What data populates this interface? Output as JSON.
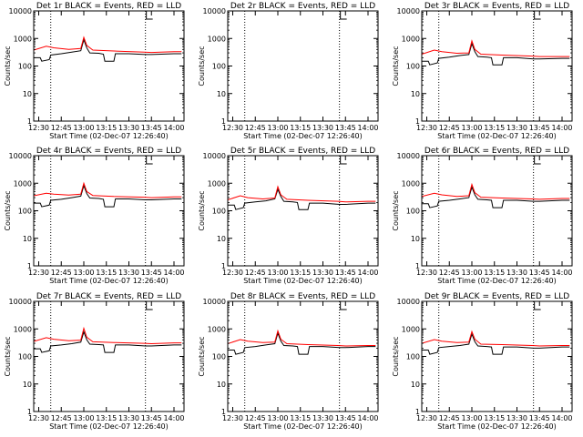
{
  "figure": {
    "background": "#ffffff",
    "events_color": "#000000",
    "lld_color": "#ff0000",
    "marker_color": "#000000"
  },
  "chart_data": [
    {
      "type": "line",
      "title": "Det 1r BLACK = Events, RED = LLD",
      "xlabel": "Start Time (02-Dec-07 12:26:40)",
      "ylabel": "Counts/sec",
      "y_scale": "log",
      "xlim": [
        "12:26:40",
        "14:06:40"
      ],
      "ylim": [
        1,
        10000
      ],
      "x_tick_labels": [
        "12:30",
        "12:45",
        "13:00",
        "13:15",
        "13:30",
        "13:45",
        "14:00"
      ],
      "y_tick_labels": [
        "1",
        "10",
        "100",
        "1000",
        "10000"
      ],
      "vertical_markers": [
        "12:38",
        "13:41"
      ],
      "series": [
        {
          "name": "Events",
          "color": "#000000",
          "x": [
            "12:26:40",
            "12:31",
            "12:32",
            "12:37",
            "12:38",
            "12:45",
            "12:52",
            "12:58",
            "13:00",
            "13:02",
            "13:04",
            "13:10",
            "13:13",
            "13:14",
            "13:20",
            "13:21",
            "13:30",
            "13:41",
            "13:45",
            "14:00",
            "14:05"
          ],
          "y": [
            200,
            200,
            150,
            170,
            250,
            280,
            320,
            360,
            900,
            450,
            300,
            290,
            270,
            150,
            150,
            280,
            280,
            260,
            260,
            280,
            280
          ]
        },
        {
          "name": "LLD",
          "color": "#ff0000",
          "x": [
            "12:26:40",
            "12:35",
            "12:40",
            "12:50",
            "12:58",
            "13:00",
            "13:02",
            "13:06",
            "13:20",
            "13:40",
            "13:45",
            "14:00",
            "14:05"
          ],
          "y": [
            380,
            520,
            460,
            400,
            430,
            1100,
            560,
            380,
            350,
            320,
            310,
            330,
            330
          ]
        }
      ]
    },
    {
      "type": "line",
      "title": "Det 2r BLACK = Events, RED = LLD",
      "xlabel": "Start Time (02-Dec-07 12:26:40)",
      "ylabel": "Counts/sec",
      "y_scale": "log",
      "xlim": [
        "12:26:40",
        "14:06:40"
      ],
      "ylim": [
        1,
        10000
      ],
      "x_tick_labels": [
        "12:30",
        "12:45",
        "13:00",
        "13:15",
        "13:30",
        "13:45",
        "14:00"
      ],
      "y_tick_labels": [
        "1",
        "10",
        "100",
        "1000",
        "10000"
      ],
      "vertical_markers": [
        "12:38",
        "13:41"
      ],
      "series": []
    },
    {
      "type": "line",
      "title": "Det 3r BLACK = Events, RED = LLD",
      "xlabel": "Start Time (02-Dec-07 12:26:40)",
      "ylabel": "Counts/sec",
      "y_scale": "log",
      "xlim": [
        "12:26:40",
        "14:06:40"
      ],
      "ylim": [
        1,
        10000
      ],
      "x_tick_labels": [
        "12:30",
        "12:45",
        "13:00",
        "13:15",
        "13:30",
        "13:45",
        "14:00"
      ],
      "y_tick_labels": [
        "1",
        "10",
        "100",
        "1000",
        "10000"
      ],
      "vertical_markers": [
        "12:38",
        "13:41"
      ],
      "series": [
        {
          "name": "Events",
          "color": "#000000",
          "x": [
            "12:26:40",
            "12:31",
            "12:32",
            "12:37",
            "12:38",
            "12:45",
            "12:52",
            "12:58",
            "13:00",
            "13:02",
            "13:04",
            "13:10",
            "13:13",
            "13:14",
            "13:20",
            "13:21",
            "13:30",
            "13:41",
            "13:45",
            "14:00",
            "14:05"
          ],
          "y": [
            150,
            150,
            110,
            130,
            190,
            210,
            240,
            260,
            650,
            330,
            220,
            210,
            200,
            110,
            110,
            200,
            200,
            180,
            180,
            190,
            190
          ]
        },
        {
          "name": "LLD",
          "color": "#ff0000",
          "x": [
            "12:26:40",
            "12:35",
            "12:40",
            "12:50",
            "12:58",
            "13:00",
            "13:02",
            "13:06",
            "13:20",
            "13:40",
            "13:45",
            "14:00",
            "14:05"
          ],
          "y": [
            270,
            380,
            330,
            290,
            300,
            820,
            400,
            270,
            250,
            230,
            220,
            220,
            220
          ]
        }
      ]
    },
    {
      "type": "line",
      "title": "Det 4r BLACK = Events, RED = LLD",
      "xlabel": "Start Time (02-Dec-07 12:26:40)",
      "ylabel": "Counts/sec",
      "y_scale": "log",
      "xlim": [
        "12:26:40",
        "14:06:40"
      ],
      "ylim": [
        1,
        10000
      ],
      "x_tick_labels": [
        "12:30",
        "12:45",
        "13:00",
        "13:15",
        "13:30",
        "13:45",
        "14:00"
      ],
      "y_tick_labels": [
        "1",
        "10",
        "100",
        "1000",
        "10000"
      ],
      "vertical_markers": [
        "12:38",
        "13:41"
      ],
      "series": [
        {
          "name": "Events",
          "color": "#000000",
          "x": [
            "12:26:40",
            "12:31",
            "12:32",
            "12:37",
            "12:38",
            "12:45",
            "12:52",
            "12:58",
            "13:00",
            "13:02",
            "13:04",
            "13:10",
            "13:13",
            "13:14",
            "13:20",
            "13:21",
            "13:30",
            "13:41",
            "13:45",
            "14:00",
            "14:05"
          ],
          "y": [
            190,
            190,
            140,
            160,
            240,
            260,
            300,
            340,
            820,
            420,
            290,
            280,
            260,
            140,
            140,
            270,
            270,
            250,
            250,
            270,
            270
          ]
        },
        {
          "name": "LLD",
          "color": "#ff0000",
          "x": [
            "12:26:40",
            "12:35",
            "12:40",
            "12:50",
            "12:58",
            "13:00",
            "13:02",
            "13:06",
            "13:20",
            "13:40",
            "13:45",
            "14:00",
            "14:05"
          ],
          "y": [
            350,
            430,
            400,
            370,
            400,
            1000,
            500,
            360,
            330,
            310,
            300,
            320,
            320
          ]
        }
      ]
    },
    {
      "type": "line",
      "title": "Det 5r BLACK = Events, RED = LLD",
      "xlabel": "Start Time (02-Dec-07 12:26:40)",
      "ylabel": "Counts/sec",
      "y_scale": "log",
      "xlim": [
        "12:26:40",
        "14:06:40"
      ],
      "ylim": [
        1,
        10000
      ],
      "x_tick_labels": [
        "12:30",
        "12:45",
        "13:00",
        "13:15",
        "13:30",
        "13:45",
        "14:00"
      ],
      "y_tick_labels": [
        "1",
        "10",
        "100",
        "1000",
        "10000"
      ],
      "vertical_markers": [
        "12:38",
        "13:41"
      ],
      "series": [
        {
          "name": "Events",
          "color": "#000000",
          "x": [
            "12:26:40",
            "12:31",
            "12:32",
            "12:37",
            "12:38",
            "12:45",
            "12:52",
            "12:58",
            "13:00",
            "13:02",
            "13:04",
            "13:10",
            "13:13",
            "13:14",
            "13:20",
            "13:21",
            "13:30",
            "13:41",
            "13:45",
            "14:00",
            "14:05"
          ],
          "y": [
            160,
            160,
            110,
            130,
            190,
            210,
            230,
            270,
            600,
            330,
            220,
            210,
            200,
            110,
            110,
            190,
            190,
            170,
            170,
            190,
            190
          ]
        },
        {
          "name": "LLD",
          "color": "#ff0000",
          "x": [
            "12:26:40",
            "12:35",
            "12:40",
            "12:50",
            "12:58",
            "13:00",
            "13:02",
            "13:06",
            "13:20",
            "13:40",
            "13:45",
            "14:00",
            "14:05"
          ],
          "y": [
            250,
            350,
            300,
            270,
            290,
            750,
            380,
            260,
            240,
            220,
            210,
            220,
            220
          ]
        }
      ]
    },
    {
      "type": "line",
      "title": "Det 6r BLACK = Events, RED = LLD",
      "xlabel": "Start Time (02-Dec-07 12:26:40)",
      "ylabel": "Counts/sec",
      "y_scale": "log",
      "xlim": [
        "12:26:40",
        "14:06:40"
      ],
      "ylim": [
        1,
        10000
      ],
      "x_tick_labels": [
        "12:30",
        "12:45",
        "13:00",
        "13:15",
        "13:30",
        "13:45",
        "14:00"
      ],
      "y_tick_labels": [
        "1",
        "10",
        "100",
        "1000",
        "10000"
      ],
      "vertical_markers": [
        "12:38",
        "13:41"
      ],
      "series": [
        {
          "name": "Events",
          "color": "#000000",
          "x": [
            "12:26:40",
            "12:31",
            "12:32",
            "12:37",
            "12:38",
            "12:45",
            "12:52",
            "12:58",
            "13:00",
            "13:02",
            "13:04",
            "13:10",
            "13:13",
            "13:14",
            "13:20",
            "13:21",
            "13:30",
            "13:41",
            "13:45",
            "14:00",
            "14:05"
          ],
          "y": [
            180,
            180,
            130,
            150,
            220,
            240,
            270,
            300,
            720,
            380,
            260,
            250,
            240,
            130,
            130,
            240,
            240,
            220,
            220,
            240,
            240
          ]
        },
        {
          "name": "LLD",
          "color": "#ff0000",
          "x": [
            "12:26:40",
            "12:35",
            "12:40",
            "12:50",
            "12:58",
            "13:00",
            "13:02",
            "13:06",
            "13:20",
            "13:40",
            "13:45",
            "14:00",
            "14:05"
          ],
          "y": [
            330,
            430,
            380,
            330,
            350,
            900,
            450,
            310,
            290,
            270,
            260,
            280,
            280
          ]
        }
      ]
    },
    {
      "type": "line",
      "title": "Det 7r BLACK = Events, RED = LLD",
      "xlabel": "Start Time (02-Dec-07 12:26:40)",
      "ylabel": "Counts/sec",
      "y_scale": "log",
      "xlim": [
        "12:26:40",
        "14:06:40"
      ],
      "ylim": [
        1,
        10000
      ],
      "x_tick_labels": [
        "12:30",
        "12:45",
        "13:00",
        "13:15",
        "13:30",
        "13:45",
        "14:00"
      ],
      "y_tick_labels": [
        "1",
        "10",
        "100",
        "1000",
        "10000"
      ],
      "vertical_markers": [
        "12:38",
        "13:41"
      ],
      "series": [
        {
          "name": "Events",
          "color": "#000000",
          "x": [
            "12:26:40",
            "12:31",
            "12:32",
            "12:37",
            "12:38",
            "12:45",
            "12:52",
            "12:58",
            "13:00",
            "13:02",
            "13:04",
            "13:10",
            "13:13",
            "13:14",
            "13:20",
            "13:21",
            "13:30",
            "13:41",
            "13:45",
            "14:00",
            "14:05"
          ],
          "y": [
            190,
            190,
            140,
            160,
            240,
            260,
            290,
            330,
            780,
            400,
            280,
            270,
            260,
            140,
            140,
            260,
            260,
            240,
            240,
            260,
            260
          ]
        },
        {
          "name": "LLD",
          "color": "#ff0000",
          "x": [
            "12:26:40",
            "12:35",
            "12:40",
            "12:50",
            "12:58",
            "13:00",
            "13:02",
            "13:06",
            "13:20",
            "13:40",
            "13:45",
            "14:00",
            "14:05"
          ],
          "y": [
            350,
            480,
            420,
            370,
            390,
            1050,
            500,
            340,
            320,
            300,
            290,
            310,
            310
          ]
        }
      ]
    },
    {
      "type": "line",
      "title": "Det 8r BLACK = Events, RED = LLD",
      "xlabel": "Start Time (02-Dec-07 12:26:40)",
      "ylabel": "Counts/sec",
      "y_scale": "log",
      "xlim": [
        "12:26:40",
        "14:06:40"
      ],
      "ylim": [
        1,
        10000
      ],
      "x_tick_labels": [
        "12:30",
        "12:45",
        "13:00",
        "13:15",
        "13:30",
        "13:45",
        "14:00"
      ],
      "y_tick_labels": [
        "1",
        "10",
        "100",
        "1000",
        "10000"
      ],
      "vertical_markers": [
        "12:38",
        "13:41"
      ],
      "series": [
        {
          "name": "Events",
          "color": "#000000",
          "x": [
            "12:26:40",
            "12:31",
            "12:32",
            "12:37",
            "12:38",
            "12:45",
            "12:52",
            "12:58",
            "13:00",
            "13:02",
            "13:04",
            "13:10",
            "13:13",
            "13:14",
            "13:20",
            "13:21",
            "13:30",
            "13:41",
            "13:45",
            "14:00",
            "14:05"
          ],
          "y": [
            170,
            170,
            120,
            140,
            210,
            230,
            260,
            290,
            700,
            360,
            250,
            240,
            230,
            120,
            120,
            230,
            230,
            210,
            210,
            230,
            230
          ]
        },
        {
          "name": "LLD",
          "color": "#ff0000",
          "x": [
            "12:26:40",
            "12:35",
            "12:40",
            "12:50",
            "12:58",
            "13:00",
            "13:02",
            "13:06",
            "13:20",
            "13:40",
            "13:45",
            "14:00",
            "14:05"
          ],
          "y": [
            290,
            410,
            360,
            320,
            330,
            850,
            420,
            290,
            270,
            250,
            240,
            250,
            250
          ]
        }
      ]
    },
    {
      "type": "line",
      "title": "Det 9r BLACK = Events, RED = LLD",
      "xlabel": "Start Time (02-Dec-07 12:26:40)",
      "ylabel": "Counts/sec",
      "y_scale": "log",
      "xlim": [
        "12:26:40",
        "14:06:40"
      ],
      "ylim": [
        1,
        10000
      ],
      "x_tick_labels": [
        "12:30",
        "12:45",
        "13:00",
        "13:15",
        "13:30",
        "13:45",
        "14:00"
      ],
      "y_tick_labels": [
        "1",
        "10",
        "100",
        "1000",
        "10000"
      ],
      "vertical_markers": [
        "12:38",
        "13:41"
      ],
      "series": [
        {
          "name": "Events",
          "color": "#000000",
          "x": [
            "12:26:40",
            "12:31",
            "12:32",
            "12:37",
            "12:38",
            "12:45",
            "12:52",
            "12:58",
            "13:00",
            "13:02",
            "13:04",
            "13:10",
            "13:13",
            "13:14",
            "13:20",
            "13:21",
            "13:30",
            "13:41",
            "13:45",
            "14:00",
            "14:05"
          ],
          "y": [
            170,
            170,
            120,
            140,
            210,
            230,
            250,
            280,
            650,
            340,
            240,
            230,
            220,
            120,
            120,
            220,
            220,
            200,
            200,
            220,
            220
          ]
        },
        {
          "name": "LLD",
          "color": "#ff0000",
          "x": [
            "12:26:40",
            "12:35",
            "12:40",
            "12:50",
            "12:58",
            "13:00",
            "13:02",
            "13:06",
            "13:20",
            "13:40",
            "13:45",
            "14:00",
            "14:05"
          ],
          "y": [
            300,
            410,
            360,
            320,
            330,
            800,
            420,
            280,
            270,
            250,
            240,
            250,
            250
          ]
        }
      ]
    }
  ]
}
